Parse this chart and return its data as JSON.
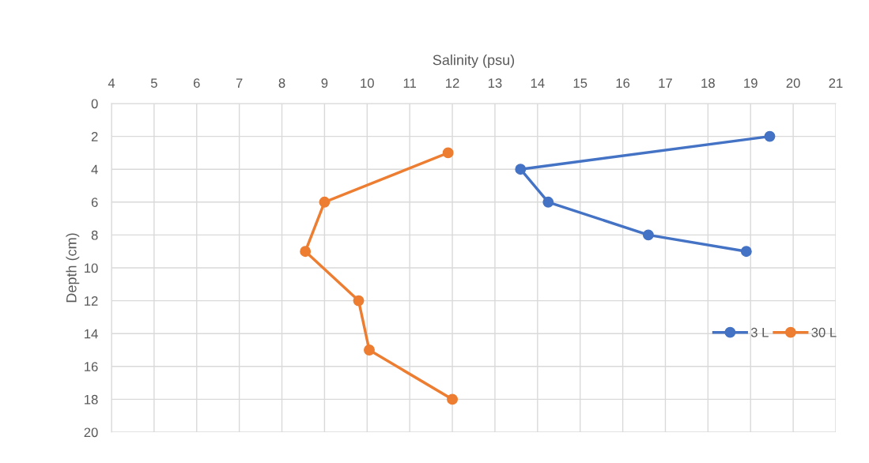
{
  "chart_data": {
    "type": "line",
    "xlabel": "Salinity (psu)",
    "ylabel": "Depth (cm)",
    "xlim": [
      4,
      21
    ],
    "xticks": [
      4,
      5,
      6,
      7,
      8,
      9,
      10,
      11,
      12,
      13,
      14,
      15,
      16,
      17,
      18,
      19,
      20,
      21
    ],
    "ylim": [
      20,
      0
    ],
    "yticks": [
      0,
      2,
      4,
      6,
      8,
      10,
      12,
      14,
      16,
      18,
      20
    ],
    "grid": true,
    "legend": "right",
    "marker": "circle",
    "line_style": "solid",
    "series": [
      {
        "name": "3 L",
        "color": "#4472c4",
        "x": [
          19.45,
          13.6,
          14.25,
          16.6,
          18.9
        ],
        "values": [
          2,
          4,
          6,
          8,
          9
        ]
      },
      {
        "name": "30 L",
        "color": "#ed7d31",
        "x": [
          11.9,
          9.0,
          8.55,
          9.8,
          10.05,
          12.0
        ],
        "values": [
          3,
          6,
          9,
          12,
          15,
          18
        ]
      }
    ]
  }
}
